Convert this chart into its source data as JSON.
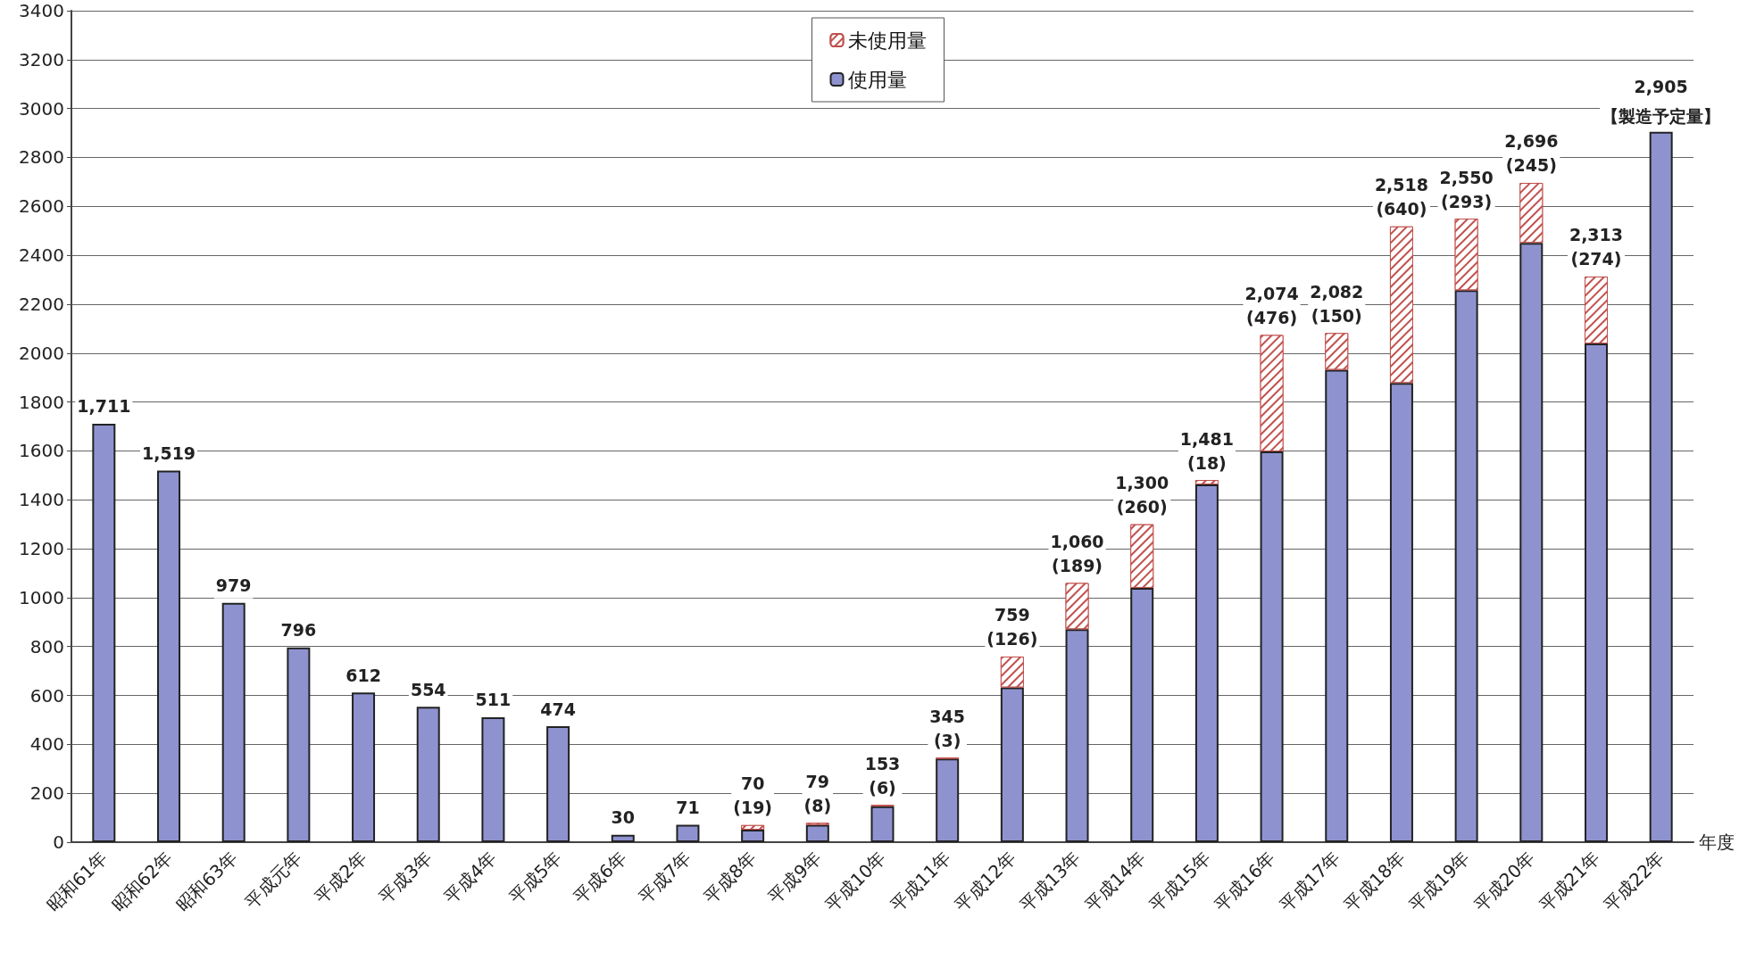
{
  "chart_data": {
    "type": "bar",
    "stacked": true,
    "xlabel": "年度",
    "categories": [
      "昭和61年",
      "昭和62年",
      "昭和63年",
      "平成元年",
      "平成2年",
      "平成3年",
      "平成4年",
      "平成5年",
      "平成6年",
      "平成7年",
      "平成8年",
      "平成9年",
      "平成10年",
      "平成11年",
      "平成12年",
      "平成13年",
      "平成14年",
      "平成15年",
      "平成16年",
      "平成17年",
      "平成18年",
      "平成19年",
      "平成20年",
      "平成21年",
      "平成22年"
    ],
    "series": [
      {
        "name": "使用量",
        "color": "#8e93d0",
        "values": [
          1711,
          1519,
          979,
          796,
          612,
          554,
          511,
          474,
          30,
          71,
          51,
          71,
          147,
          342,
          633,
          871,
          1040,
          1463,
          1598,
          1932,
          1878,
          2257,
          2451,
          2039,
          2905
        ]
      },
      {
        "name": "未使用量",
        "color": "#c0504d",
        "values": [
          null,
          null,
          null,
          null,
          null,
          null,
          null,
          null,
          null,
          null,
          19,
          8,
          6,
          3,
          126,
          189,
          260,
          18,
          476,
          150,
          640,
          293,
          245,
          274,
          null
        ],
        "value_labels": [
          null,
          null,
          null,
          null,
          null,
          null,
          null,
          null,
          null,
          null,
          "(19)",
          "(8)",
          "(6)",
          "(3)",
          "(126)",
          "(189)",
          "(260)",
          "(18)",
          "(476)",
          "(150)",
          "(640)",
          "(293)",
          "(245)",
          "(274)",
          null
        ]
      }
    ],
    "totals": [
      "1,711",
      "1,519",
      "979",
      "796",
      "612",
      "554",
      "511",
      "474",
      "30",
      "71",
      "70",
      "79",
      "153",
      "345",
      "759",
      "1,060",
      "1,300",
      "1,481",
      "2,074",
      "2,082",
      "2,518",
      "2,550",
      "2,696",
      "2,313",
      "2,905"
    ],
    "annotations": [
      {
        "text": "【製造予定量】",
        "x": "平成22年",
        "y": 2905
      }
    ],
    "ylim": [
      0,
      3400
    ],
    "yticks": [
      0,
      200,
      400,
      600,
      800,
      1000,
      1200,
      1400,
      1600,
      1800,
      2000,
      2200,
      2400,
      2600,
      2800,
      3000,
      3200,
      3400
    ],
    "grid": "y",
    "legend": "top"
  }
}
